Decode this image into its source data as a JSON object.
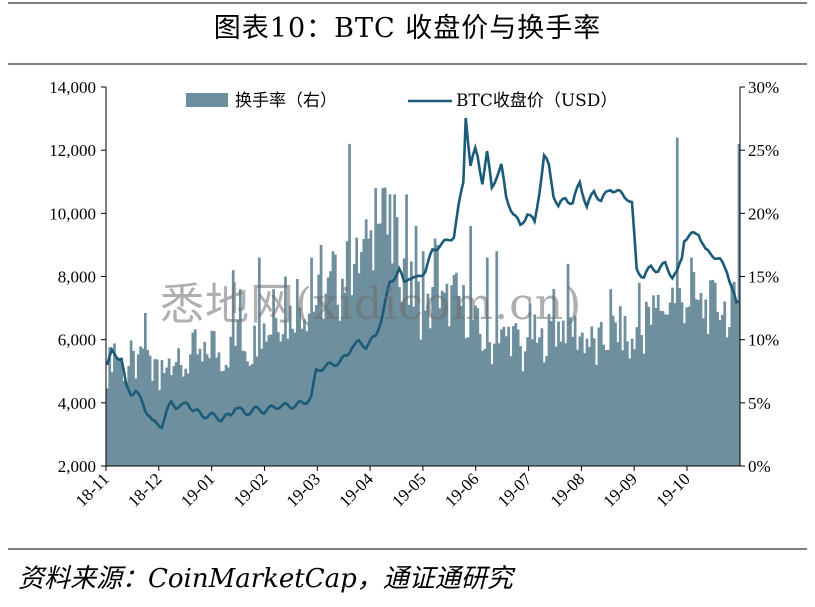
{
  "title": "图表10：BTC 收盘价与换手率",
  "source": "资料来源：CoinMarketCap，通证通研究",
  "watermark": "悉地网(xidicom.cn)",
  "colors": {
    "bar": "#6e8f9d",
    "line": "#1b5b7a",
    "axis": "#000000",
    "rule": "#7f7f7f"
  },
  "chart_data": {
    "type": "bar",
    "legend_position": "top-center",
    "grid": false,
    "x_tick_labels": [
      "18-11",
      "18-12",
      "19-01",
      "19-02",
      "19-03",
      "19-04",
      "19-05",
      "19-06",
      "19-07",
      "19-08",
      "19-09",
      "19-10"
    ],
    "left_axis": {
      "ylim": [
        2000,
        14000
      ],
      "ticks": [
        "2,000",
        "4,000",
        "6,000",
        "8,000",
        "10,000",
        "12,000",
        "14,000"
      ]
    },
    "right_axis": {
      "ylim": [
        0,
        30
      ],
      "ticks": [
        "0%",
        "5%",
        "10%",
        "15%",
        "20%",
        "25%",
        "30%"
      ]
    },
    "series": [
      {
        "name": "换手率（右）",
        "type": "bar",
        "axis": "right",
        "unit": "%",
        "anchors": [
          [
            0,
            7.5
          ],
          [
            3,
            9.5
          ],
          [
            6,
            8.2
          ],
          [
            8,
            7.1
          ],
          [
            10,
            8.5
          ],
          [
            13,
            7.5
          ],
          [
            16,
            10.5
          ],
          [
            19,
            7.2
          ],
          [
            22,
            8.8
          ],
          [
            25,
            8.3
          ],
          [
            28,
            9.0
          ],
          [
            31,
            7.4
          ],
          [
            34,
            8.2
          ],
          [
            37,
            9.4
          ],
          [
            40,
            8.0
          ],
          [
            44,
            10.0
          ],
          [
            48,
            8.6
          ],
          [
            52,
            9.2
          ],
          [
            56,
            10.5
          ],
          [
            60,
            9.0
          ],
          [
            64,
            11.0
          ],
          [
            68,
            10.8
          ],
          [
            72,
            12.0
          ],
          [
            76,
            11.5
          ],
          [
            80,
            13.0
          ],
          [
            84,
            12.5
          ],
          [
            88,
            13.0
          ],
          [
            92,
            13.5
          ],
          [
            96,
            14.5
          ],
          [
            100,
            15.0
          ],
          [
            104,
            15.5
          ],
          [
            107,
            16.5
          ],
          [
            110,
            17.0
          ],
          [
            112,
            18.5
          ],
          [
            115,
            19.5
          ],
          [
            118,
            19.0
          ],
          [
            120,
            17.5
          ],
          [
            123,
            16.5
          ],
          [
            126,
            14.5
          ],
          [
            130,
            13.5
          ],
          [
            134,
            12.0
          ],
          [
            138,
            13.0
          ],
          [
            142,
            12.5
          ],
          [
            146,
            13.5
          ],
          [
            150,
            12.5
          ],
          [
            154,
            11.5
          ],
          [
            158,
            10.0
          ],
          [
            162,
            9.5
          ],
          [
            166,
            10.0
          ],
          [
            170,
            10.5
          ],
          [
            174,
            9.5
          ],
          [
            178,
            11.0
          ],
          [
            182,
            9.5
          ],
          [
            186,
            10.5
          ],
          [
            190,
            11.0
          ],
          [
            194,
            11.5
          ],
          [
            198,
            10.5
          ],
          [
            202,
            10.0
          ],
          [
            206,
            9.5
          ],
          [
            210,
            10.0
          ],
          [
            214,
            11.0
          ],
          [
            218,
            10.5
          ],
          [
            222,
            10.0
          ],
          [
            226,
            10.5
          ],
          [
            230,
            12.0
          ],
          [
            234,
            13.0
          ],
          [
            238,
            13.5
          ],
          [
            242,
            13.0
          ],
          [
            246,
            13.5
          ],
          [
            250,
            12.5
          ],
          [
            254,
            12.5
          ],
          [
            258,
            13.0
          ],
          [
            262,
            12.0
          ],
          [
            265,
            13.0
          ]
        ],
        "spikes": [
          [
            53,
            15.5
          ],
          [
            56,
            14.0
          ],
          [
            64,
            16.5
          ],
          [
            70,
            14.0
          ],
          [
            75,
            15.0
          ],
          [
            80,
            14.8
          ],
          [
            86,
            16.5
          ],
          [
            90,
            17.5
          ],
          [
            95,
            17.0
          ],
          [
            101,
            17.8
          ],
          [
            102,
            25.5
          ],
          [
            104,
            16.0
          ],
          [
            110,
            18.0
          ],
          [
            113,
            22.0
          ],
          [
            116,
            22.0
          ],
          [
            121,
            21.5
          ],
          [
            126,
            21.5
          ],
          [
            130,
            19.0
          ],
          [
            133,
            17.0
          ],
          [
            138,
            18.0
          ],
          [
            139,
            17.5
          ],
          [
            153,
            19.0
          ],
          [
            160,
            16.5
          ],
          [
            164,
            17.0
          ],
          [
            188,
            14.0
          ],
          [
            194,
            16.0
          ],
          [
            212,
            14.0
          ],
          [
            224,
            14.5
          ],
          [
            227,
            13.0
          ],
          [
            240,
            26.0
          ],
          [
            246,
            16.5
          ],
          [
            256,
            14.5
          ],
          [
            266,
            25.5
          ]
        ],
        "dips": [
          [
            22,
            6.0
          ],
          [
            50,
            8.0
          ],
          [
            98,
            11.5
          ],
          [
            132,
            10.0
          ],
          [
            175,
            7.5
          ],
          [
            206,
            8.0
          ],
          [
            220,
            8.5
          ],
          [
            235,
            12.0
          ],
          [
            262,
            11.0
          ]
        ]
      },
      {
        "name": "BTC收盘价（USD）",
        "type": "line",
        "axis": "left",
        "unit": "USD",
        "anchors": [
          [
            0,
            5200
          ],
          [
            2,
            5600
          ],
          [
            4,
            5500
          ],
          [
            6,
            5400
          ],
          [
            8,
            4500
          ],
          [
            10,
            4300
          ],
          [
            12,
            4400
          ],
          [
            14,
            4100
          ],
          [
            16,
            3800
          ],
          [
            18,
            3600
          ],
          [
            19,
            3400
          ],
          [
            21,
            3300
          ],
          [
            23,
            3300
          ],
          [
            25,
            3700
          ],
          [
            27,
            4000
          ],
          [
            29,
            3900
          ],
          [
            32,
            3900
          ],
          [
            34,
            4000
          ],
          [
            36,
            3800
          ],
          [
            38,
            3700
          ],
          [
            40,
            3600
          ],
          [
            44,
            3600
          ],
          [
            48,
            3500
          ],
          [
            52,
            3600
          ],
          [
            54,
            3900
          ],
          [
            58,
            3650
          ],
          [
            62,
            3800
          ],
          [
            66,
            3750
          ],
          [
            72,
            3900
          ],
          [
            78,
            3900
          ],
          [
            83,
            4000
          ],
          [
            86,
            4200
          ],
          [
            88,
            5000
          ],
          [
            90,
            5100
          ],
          [
            94,
            5200
          ],
          [
            98,
            5300
          ],
          [
            101,
            5500
          ],
          [
            103,
            5800
          ],
          [
            106,
            5900
          ],
          [
            109,
            5800
          ],
          [
            113,
            6100
          ],
          [
            116,
            6800
          ],
          [
            119,
            7800
          ],
          [
            121,
            8000
          ],
          [
            123,
            8200
          ],
          [
            125,
            7800
          ],
          [
            127,
            8000
          ],
          [
            130,
            7900
          ],
          [
            134,
            8200
          ],
          [
            137,
            8800
          ],
          [
            140,
            9000
          ],
          [
            143,
            9100
          ],
          [
            146,
            9300
          ],
          [
            148,
            10200
          ],
          [
            150,
            11000
          ],
          [
            151,
            13100
          ],
          [
            153,
            11500
          ],
          [
            155,
            12000
          ],
          [
            156,
            11800
          ],
          [
            158,
            11000
          ],
          [
            160,
            11900
          ],
          [
            162,
            10800
          ],
          [
            164,
            11200
          ],
          [
            166,
            11500
          ],
          [
            168,
            10500
          ],
          [
            171,
            10000
          ],
          [
            174,
            9600
          ],
          [
            177,
            10000
          ],
          [
            180,
            9700
          ],
          [
            182,
            10700
          ],
          [
            184,
            11800
          ],
          [
            186,
            11500
          ],
          [
            188,
            10600
          ],
          [
            190,
            10200
          ],
          [
            193,
            10500
          ],
          [
            196,
            10300
          ],
          [
            199,
            11000
          ],
          [
            202,
            10200
          ],
          [
            205,
            10700
          ],
          [
            208,
            10400
          ],
          [
            212,
            10800
          ],
          [
            214,
            10700
          ],
          [
            217,
            10600
          ],
          [
            219,
            10500
          ],
          [
            221,
            10300
          ],
          [
            223,
            8200
          ],
          [
            226,
            8000
          ],
          [
            229,
            8300
          ],
          [
            232,
            8200
          ],
          [
            235,
            8400
          ],
          [
            238,
            8000
          ],
          [
            240,
            8100
          ],
          [
            242,
            8600
          ],
          [
            243,
            9200
          ],
          [
            246,
            9300
          ],
          [
            249,
            9400
          ],
          [
            252,
            8800
          ],
          [
            255,
            8700
          ],
          [
            258,
            8500
          ],
          [
            261,
            8200
          ],
          [
            264,
            7400
          ],
          [
            265,
            7100
          ],
          [
            266,
            7200
          ]
        ]
      }
    ]
  }
}
